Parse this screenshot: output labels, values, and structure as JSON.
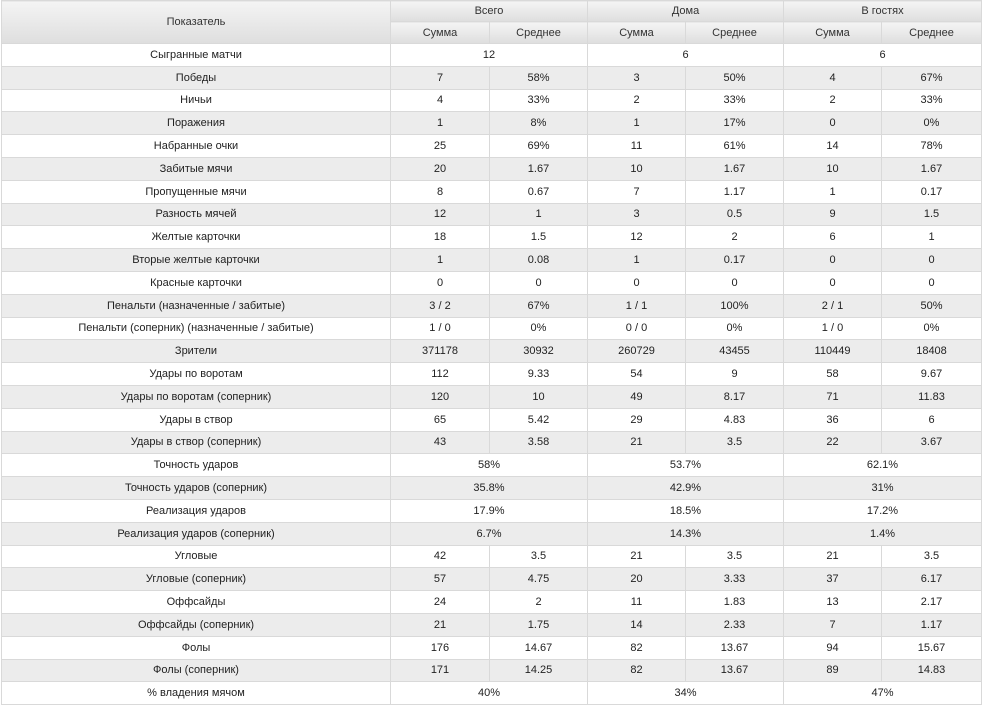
{
  "header": {
    "metric": "Показатель",
    "groups": [
      "Всего",
      "Дома",
      "В гостях"
    ],
    "sub": [
      "Сумма",
      "Среднее",
      "Сумма",
      "Среднее",
      "Сумма",
      "Среднее"
    ]
  },
  "rows": [
    {
      "label": "Сыгранные матчи",
      "merged": true,
      "cells": [
        "12",
        "6",
        "6"
      ]
    },
    {
      "label": "Победы",
      "merged": false,
      "cells": [
        "7",
        "58%",
        "3",
        "50%",
        "4",
        "67%"
      ]
    },
    {
      "label": "Ничьи",
      "merged": false,
      "cells": [
        "4",
        "33%",
        "2",
        "33%",
        "2",
        "33%"
      ]
    },
    {
      "label": "Поражения",
      "merged": false,
      "cells": [
        "1",
        "8%",
        "1",
        "17%",
        "0",
        "0%"
      ]
    },
    {
      "label": "Набранные очки",
      "merged": false,
      "cells": [
        "25",
        "69%",
        "11",
        "61%",
        "14",
        "78%"
      ]
    },
    {
      "label": "Забитые мячи",
      "merged": false,
      "cells": [
        "20",
        "1.67",
        "10",
        "1.67",
        "10",
        "1.67"
      ]
    },
    {
      "label": "Пропущенные мячи",
      "merged": false,
      "cells": [
        "8",
        "0.67",
        "7",
        "1.17",
        "1",
        "0.17"
      ]
    },
    {
      "label": "Разность мячей",
      "merged": false,
      "cells": [
        "12",
        "1",
        "3",
        "0.5",
        "9",
        "1.5"
      ]
    },
    {
      "label": "Желтые карточки",
      "merged": false,
      "cells": [
        "18",
        "1.5",
        "12",
        "2",
        "6",
        "1"
      ]
    },
    {
      "label": "Вторые желтые карточки",
      "merged": false,
      "cells": [
        "1",
        "0.08",
        "1",
        "0.17",
        "0",
        "0"
      ]
    },
    {
      "label": "Красные карточки",
      "merged": false,
      "cells": [
        "0",
        "0",
        "0",
        "0",
        "0",
        "0"
      ]
    },
    {
      "label": "Пенальти (назначенные / забитые)",
      "merged": false,
      "cells": [
        "3 / 2",
        "67%",
        "1 / 1",
        "100%",
        "2 / 1",
        "50%"
      ]
    },
    {
      "label": "Пенальти (соперник) (назначенные / забитые)",
      "merged": false,
      "cells": [
        "1 / 0",
        "0%",
        "0 / 0",
        "0%",
        "1 / 0",
        "0%"
      ]
    },
    {
      "label": "Зрители",
      "merged": false,
      "cells": [
        "371178",
        "30932",
        "260729",
        "43455",
        "110449",
        "18408"
      ]
    },
    {
      "label": "Удары по воротам",
      "merged": false,
      "cells": [
        "112",
        "9.33",
        "54",
        "9",
        "58",
        "9.67"
      ]
    },
    {
      "label": "Удары по воротам (соперник)",
      "merged": false,
      "cells": [
        "120",
        "10",
        "49",
        "8.17",
        "71",
        "11.83"
      ]
    },
    {
      "label": "Удары в створ",
      "merged": false,
      "cells": [
        "65",
        "5.42",
        "29",
        "4.83",
        "36",
        "6"
      ]
    },
    {
      "label": "Удары в створ (соперник)",
      "merged": false,
      "cells": [
        "43",
        "3.58",
        "21",
        "3.5",
        "22",
        "3.67"
      ]
    },
    {
      "label": "Точность ударов",
      "merged": true,
      "cells": [
        "58%",
        "53.7%",
        "62.1%"
      ]
    },
    {
      "label": "Точность ударов (соперник)",
      "merged": true,
      "cells": [
        "35.8%",
        "42.9%",
        "31%"
      ]
    },
    {
      "label": "Реализация ударов",
      "merged": true,
      "cells": [
        "17.9%",
        "18.5%",
        "17.2%"
      ]
    },
    {
      "label": "Реализация ударов (соперник)",
      "merged": true,
      "cells": [
        "6.7%",
        "14.3%",
        "1.4%"
      ]
    },
    {
      "label": "Угловые",
      "merged": false,
      "cells": [
        "42",
        "3.5",
        "21",
        "3.5",
        "21",
        "3.5"
      ]
    },
    {
      "label": "Угловые (соперник)",
      "merged": false,
      "cells": [
        "57",
        "4.75",
        "20",
        "3.33",
        "37",
        "6.17"
      ]
    },
    {
      "label": "Оффсайды",
      "merged": false,
      "cells": [
        "24",
        "2",
        "11",
        "1.83",
        "13",
        "2.17"
      ]
    },
    {
      "label": "Оффсайды (соперник)",
      "merged": false,
      "cells": [
        "21",
        "1.75",
        "14",
        "2.33",
        "7",
        "1.17"
      ]
    },
    {
      "label": "Фолы",
      "merged": false,
      "cells": [
        "176",
        "14.67",
        "82",
        "13.67",
        "94",
        "15.67"
      ]
    },
    {
      "label": "Фолы (соперник)",
      "merged": false,
      "cells": [
        "171",
        "14.25",
        "82",
        "13.67",
        "89",
        "14.83"
      ]
    },
    {
      "label": "% владения мячом",
      "merged": true,
      "cells": [
        "40%",
        "34%",
        "47%"
      ]
    }
  ]
}
